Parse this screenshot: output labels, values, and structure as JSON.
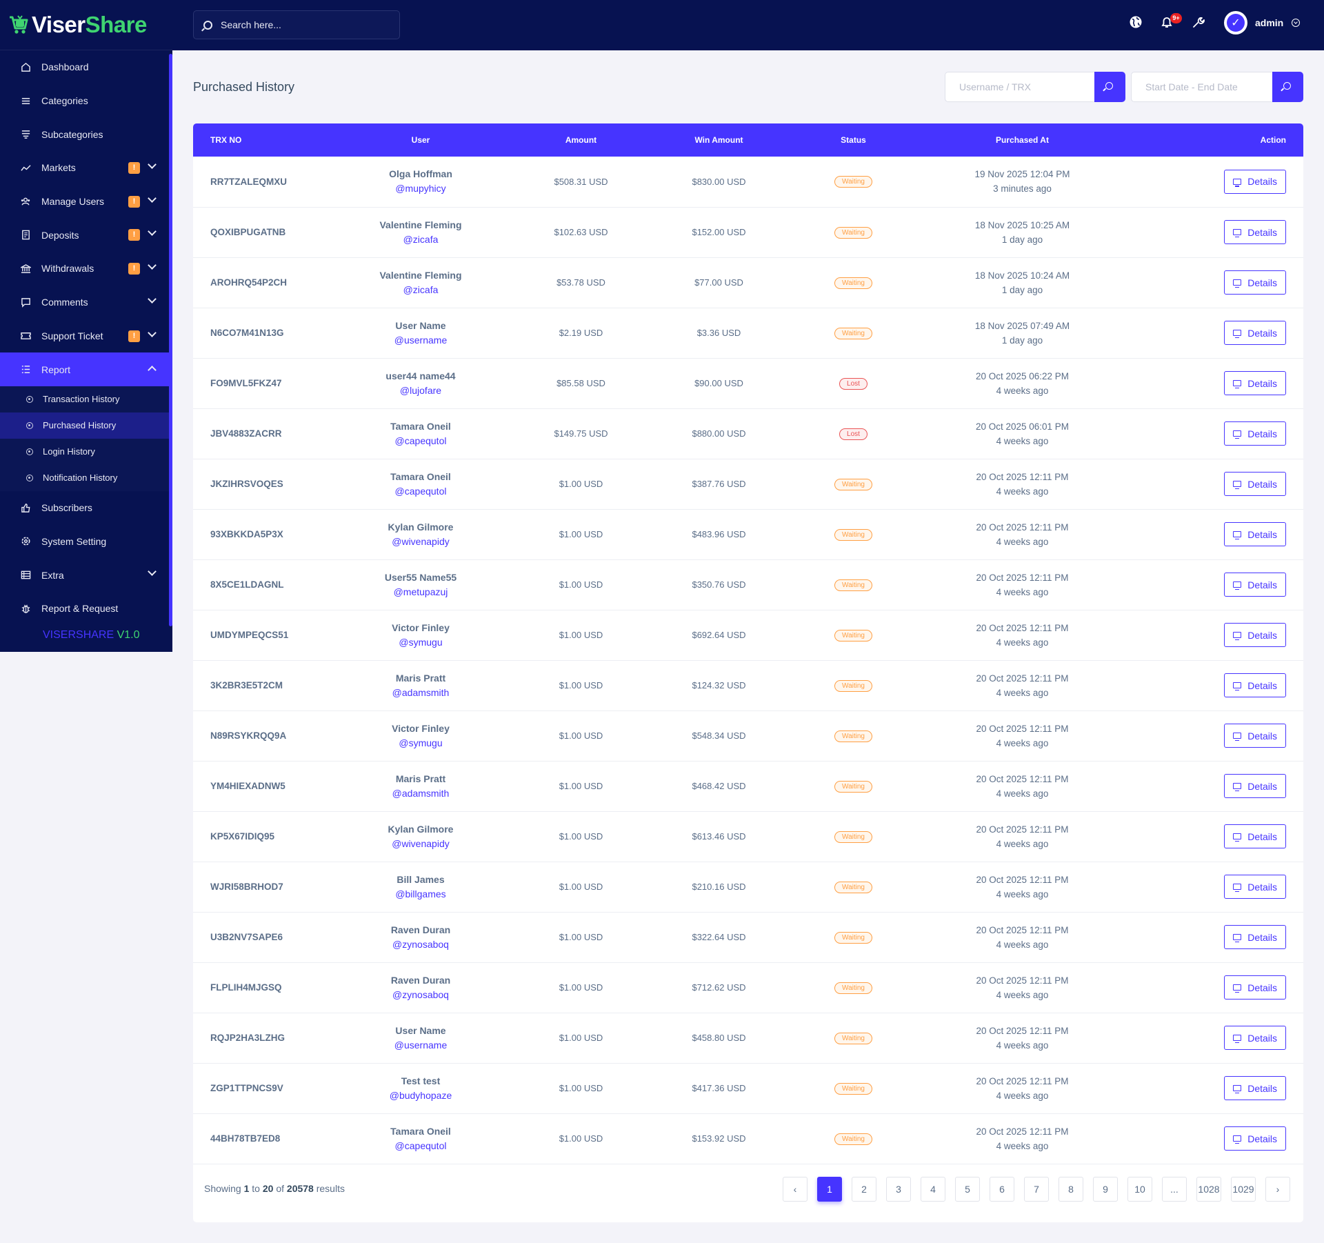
{
  "brand": {
    "name_part1": "Viser",
    "name_part2": "Share"
  },
  "search": {
    "placeholder": "Search here..."
  },
  "topbar": {
    "notification_count": "9+",
    "admin_name": "admin",
    "avatar_letter": "✓"
  },
  "sidebar": {
    "items": [
      {
        "label": "Dashboard",
        "icon": "home-icon",
        "badge": "",
        "chevron": false
      },
      {
        "label": "Categories",
        "icon": "list-icon",
        "badge": "",
        "chevron": false
      },
      {
        "label": "Subcategories",
        "icon": "layers-icon",
        "badge": "",
        "chevron": false
      },
      {
        "label": "Markets",
        "icon": "chart-line-icon",
        "badge": "!",
        "chevron": true
      },
      {
        "label": "Manage Users",
        "icon": "users-icon",
        "badge": "!",
        "chevron": true
      },
      {
        "label": "Deposits",
        "icon": "deposit-icon",
        "badge": "!",
        "chevron": true
      },
      {
        "label": "Withdrawals",
        "icon": "bank-icon",
        "badge": "!",
        "chevron": true
      },
      {
        "label": "Comments",
        "icon": "comment-icon",
        "badge": "",
        "chevron": true
      },
      {
        "label": "Support Ticket",
        "icon": "ticket-icon",
        "badge": "!",
        "chevron": true
      },
      {
        "label": "Report",
        "icon": "report-icon",
        "badge": "",
        "chevron": true
      }
    ],
    "report_sub": [
      {
        "label": "Transaction History"
      },
      {
        "label": "Purchased History"
      },
      {
        "label": "Login History"
      },
      {
        "label": "Notification History"
      }
    ],
    "items_after": [
      {
        "label": "Subscribers",
        "icon": "thumbs-up-icon",
        "chevron": false
      },
      {
        "label": "System Setting",
        "icon": "settings-icon",
        "chevron": false
      },
      {
        "label": "Extra",
        "icon": "server-icon",
        "chevron": true
      },
      {
        "label": "Report & Request",
        "icon": "bug-icon",
        "chevron": false
      }
    ],
    "version_part1": "VISERSHARE",
    "version_part2": "V1.0"
  },
  "page": {
    "title": "Purchased History",
    "filter_user_placeholder": "Username / TRX",
    "filter_date_placeholder": "Start Date - End Date"
  },
  "table": {
    "headers": [
      "TRX NO",
      "User",
      "Amount",
      "Win Amount",
      "Status",
      "Purchased At",
      "Action"
    ],
    "action_label": "Details",
    "rows": [
      {
        "trx": "RR7TZALEQMXU",
        "name": "Olga Hoffman",
        "handle": "@mupyhicy",
        "amount": "$508.31 USD",
        "win": "$830.00 USD",
        "status": "Waiting",
        "date": "19 Nov 2025 12:04 PM",
        "ago": "3 minutes ago"
      },
      {
        "trx": "QOXIBPUGATNB",
        "name": "Valentine Fleming",
        "handle": "@zicafa",
        "amount": "$102.63 USD",
        "win": "$152.00 USD",
        "status": "Waiting",
        "date": "18 Nov 2025 10:25 AM",
        "ago": "1 day ago"
      },
      {
        "trx": "AROHRQ54P2CH",
        "name": "Valentine Fleming",
        "handle": "@zicafa",
        "amount": "$53.78 USD",
        "win": "$77.00 USD",
        "status": "Waiting",
        "date": "18 Nov 2025 10:24 AM",
        "ago": "1 day ago"
      },
      {
        "trx": "N6CO7M41N13G",
        "name": "User Name",
        "handle": "@username",
        "amount": "$2.19 USD",
        "win": "$3.36 USD",
        "status": "Waiting",
        "date": "18 Nov 2025 07:49 AM",
        "ago": "1 day ago"
      },
      {
        "trx": "FO9MVL5FKZ47",
        "name": "user44 name44",
        "handle": "@lujofare",
        "amount": "$85.58 USD",
        "win": "$90.00 USD",
        "status": "Lost",
        "date": "20 Oct 2025 06:22 PM",
        "ago": "4 weeks ago"
      },
      {
        "trx": "JBV4883ZACRR",
        "name": "Tamara Oneil",
        "handle": "@capequtol",
        "amount": "$149.75 USD",
        "win": "$880.00 USD",
        "status": "Lost",
        "date": "20 Oct 2025 06:01 PM",
        "ago": "4 weeks ago"
      },
      {
        "trx": "JKZIHRSVOQES",
        "name": "Tamara Oneil",
        "handle": "@capequtol",
        "amount": "$1.00 USD",
        "win": "$387.76 USD",
        "status": "Waiting",
        "date": "20 Oct 2025 12:11 PM",
        "ago": "4 weeks ago"
      },
      {
        "trx": "93XBKKDA5P3X",
        "name": "Kylan Gilmore",
        "handle": "@wivenapidy",
        "amount": "$1.00 USD",
        "win": "$483.96 USD",
        "status": "Waiting",
        "date": "20 Oct 2025 12:11 PM",
        "ago": "4 weeks ago"
      },
      {
        "trx": "8X5CE1LDAGNL",
        "name": "User55 Name55",
        "handle": "@metupazuj",
        "amount": "$1.00 USD",
        "win": "$350.76 USD",
        "status": "Waiting",
        "date": "20 Oct 2025 12:11 PM",
        "ago": "4 weeks ago"
      },
      {
        "trx": "UMDYMPEQCS51",
        "name": "Victor Finley",
        "handle": "@symugu",
        "amount": "$1.00 USD",
        "win": "$692.64 USD",
        "status": "Waiting",
        "date": "20 Oct 2025 12:11 PM",
        "ago": "4 weeks ago"
      },
      {
        "trx": "3K2BR3E5T2CM",
        "name": "Maris Pratt",
        "handle": "@adamsmith",
        "amount": "$1.00 USD",
        "win": "$124.32 USD",
        "status": "Waiting",
        "date": "20 Oct 2025 12:11 PM",
        "ago": "4 weeks ago"
      },
      {
        "trx": "N89RSYKRQQ9A",
        "name": "Victor Finley",
        "handle": "@symugu",
        "amount": "$1.00 USD",
        "win": "$548.34 USD",
        "status": "Waiting",
        "date": "20 Oct 2025 12:11 PM",
        "ago": "4 weeks ago"
      },
      {
        "trx": "YM4HIEXADNW5",
        "name": "Maris Pratt",
        "handle": "@adamsmith",
        "amount": "$1.00 USD",
        "win": "$468.42 USD",
        "status": "Waiting",
        "date": "20 Oct 2025 12:11 PM",
        "ago": "4 weeks ago"
      },
      {
        "trx": "KP5X67IDIQ95",
        "name": "Kylan Gilmore",
        "handle": "@wivenapidy",
        "amount": "$1.00 USD",
        "win": "$613.46 USD",
        "status": "Waiting",
        "date": "20 Oct 2025 12:11 PM",
        "ago": "4 weeks ago"
      },
      {
        "trx": "WJRI58BRHOD7",
        "name": "Bill James",
        "handle": "@billgames",
        "amount": "$1.00 USD",
        "win": "$210.16 USD",
        "status": "Waiting",
        "date": "20 Oct 2025 12:11 PM",
        "ago": "4 weeks ago"
      },
      {
        "trx": "U3B2NV7SAPE6",
        "name": "Raven Duran",
        "handle": "@zynosaboq",
        "amount": "$1.00 USD",
        "win": "$322.64 USD",
        "status": "Waiting",
        "date": "20 Oct 2025 12:11 PM",
        "ago": "4 weeks ago"
      },
      {
        "trx": "FLPLIH4MJGSQ",
        "name": "Raven Duran",
        "handle": "@zynosaboq",
        "amount": "$1.00 USD",
        "win": "$712.62 USD",
        "status": "Waiting",
        "date": "20 Oct 2025 12:11 PM",
        "ago": "4 weeks ago"
      },
      {
        "trx": "RQJP2HA3LZHG",
        "name": "User Name",
        "handle": "@username",
        "amount": "$1.00 USD",
        "win": "$458.80 USD",
        "status": "Waiting",
        "date": "20 Oct 2025 12:11 PM",
        "ago": "4 weeks ago"
      },
      {
        "trx": "ZGP1TTPNCS9V",
        "name": "Test test",
        "handle": "@budyhopaze",
        "amount": "$1.00 USD",
        "win": "$417.36 USD",
        "status": "Waiting",
        "date": "20 Oct 2025 12:11 PM",
        "ago": "4 weeks ago"
      },
      {
        "trx": "44BH78TB7ED8",
        "name": "Tamara Oneil",
        "handle": "@capequtol",
        "amount": "$1.00 USD",
        "win": "$153.92 USD",
        "status": "Waiting",
        "date": "20 Oct 2025 12:11 PM",
        "ago": "4 weeks ago"
      }
    ]
  },
  "pagination": {
    "showing_prefix": "Showing",
    "from": "1",
    "to_word": "to",
    "to": "20",
    "of_word": "of",
    "total": "20578",
    "suffix": "results",
    "prev": "‹",
    "next": "›",
    "pages": [
      "1",
      "2",
      "3",
      "4",
      "5",
      "6",
      "7",
      "8",
      "9",
      "10",
      "...",
      "1028",
      "1029"
    ],
    "active_page": "1"
  },
  "colors": {
    "primary": "#4634ff",
    "sidebar_bg": "#071251",
    "brand_green": "#3fd471",
    "warning": "#ff9f43",
    "danger": "#ea5455"
  }
}
